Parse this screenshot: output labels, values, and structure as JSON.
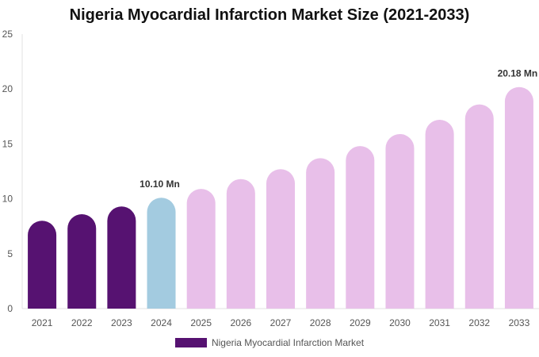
{
  "chart_data": {
    "type": "bar",
    "title": "Nigeria Myocardial Infarction Market Size (2021-2033)",
    "xlabel": "",
    "ylabel": "",
    "ylim": [
      0,
      25
    ],
    "yticks": [
      0,
      5,
      10,
      15,
      20,
      25
    ],
    "categories": [
      "2021",
      "2022",
      "2023",
      "2024",
      "2025",
      "2026",
      "2027",
      "2028",
      "2029",
      "2030",
      "2031",
      "2032",
      "2033"
    ],
    "series": [
      {
        "name": "Nigeria Myocardial Infarction Market",
        "values": [
          8.0,
          8.6,
          9.3,
          10.1,
          10.9,
          11.8,
          12.7,
          13.7,
          14.8,
          15.9,
          17.2,
          18.6,
          20.18
        ]
      }
    ],
    "bar_colors": [
      "#561271",
      "#561271",
      "#561271",
      "#a3cbe0",
      "#e8bfe9",
      "#e8bfe9",
      "#e8bfe9",
      "#e8bfe9",
      "#e8bfe9",
      "#e8bfe9",
      "#e8bfe9",
      "#e8bfe9",
      "#e8bfe9"
    ],
    "data_labels": [
      {
        "category": "2024",
        "text": "10.10 Mn"
      },
      {
        "category": "2033",
        "text": "20.18 Mn"
      }
    ],
    "legend": {
      "position": "bottom",
      "color": "#561271"
    },
    "grid": false
  }
}
